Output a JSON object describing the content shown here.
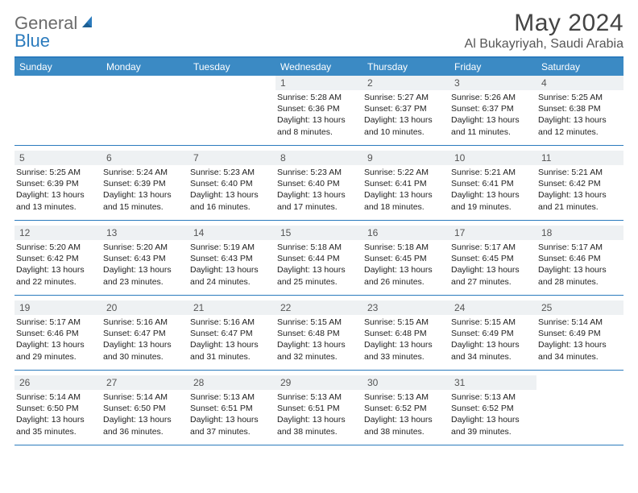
{
  "brand": {
    "part1": "General",
    "part2": "Blue"
  },
  "title": "May 2024",
  "location": "Al Bukayriyah, Saudi Arabia",
  "colors": {
    "header_bar": "#3b8ac4",
    "border": "#2b7bbd",
    "daynum_bg": "#eef1f3",
    "text": "#222222",
    "muted": "#555555",
    "logo_gray": "#6b6b6b",
    "logo_blue": "#2b7bbd"
  },
  "dow": [
    "Sunday",
    "Monday",
    "Tuesday",
    "Wednesday",
    "Thursday",
    "Friday",
    "Saturday"
  ],
  "weeks": [
    [
      {
        "empty": true
      },
      {
        "empty": true
      },
      {
        "empty": true
      },
      {
        "day": "1",
        "sunrise": "Sunrise: 5:28 AM",
        "sunset": "Sunset: 6:36 PM",
        "dl1": "Daylight: 13 hours",
        "dl2": "and 8 minutes."
      },
      {
        "day": "2",
        "sunrise": "Sunrise: 5:27 AM",
        "sunset": "Sunset: 6:37 PM",
        "dl1": "Daylight: 13 hours",
        "dl2": "and 10 minutes."
      },
      {
        "day": "3",
        "sunrise": "Sunrise: 5:26 AM",
        "sunset": "Sunset: 6:37 PM",
        "dl1": "Daylight: 13 hours",
        "dl2": "and 11 minutes."
      },
      {
        "day": "4",
        "sunrise": "Sunrise: 5:25 AM",
        "sunset": "Sunset: 6:38 PM",
        "dl1": "Daylight: 13 hours",
        "dl2": "and 12 minutes."
      }
    ],
    [
      {
        "day": "5",
        "sunrise": "Sunrise: 5:25 AM",
        "sunset": "Sunset: 6:39 PM",
        "dl1": "Daylight: 13 hours",
        "dl2": "and 13 minutes."
      },
      {
        "day": "6",
        "sunrise": "Sunrise: 5:24 AM",
        "sunset": "Sunset: 6:39 PM",
        "dl1": "Daylight: 13 hours",
        "dl2": "and 15 minutes."
      },
      {
        "day": "7",
        "sunrise": "Sunrise: 5:23 AM",
        "sunset": "Sunset: 6:40 PM",
        "dl1": "Daylight: 13 hours",
        "dl2": "and 16 minutes."
      },
      {
        "day": "8",
        "sunrise": "Sunrise: 5:23 AM",
        "sunset": "Sunset: 6:40 PM",
        "dl1": "Daylight: 13 hours",
        "dl2": "and 17 minutes."
      },
      {
        "day": "9",
        "sunrise": "Sunrise: 5:22 AM",
        "sunset": "Sunset: 6:41 PM",
        "dl1": "Daylight: 13 hours",
        "dl2": "and 18 minutes."
      },
      {
        "day": "10",
        "sunrise": "Sunrise: 5:21 AM",
        "sunset": "Sunset: 6:41 PM",
        "dl1": "Daylight: 13 hours",
        "dl2": "and 19 minutes."
      },
      {
        "day": "11",
        "sunrise": "Sunrise: 5:21 AM",
        "sunset": "Sunset: 6:42 PM",
        "dl1": "Daylight: 13 hours",
        "dl2": "and 21 minutes."
      }
    ],
    [
      {
        "day": "12",
        "sunrise": "Sunrise: 5:20 AM",
        "sunset": "Sunset: 6:42 PM",
        "dl1": "Daylight: 13 hours",
        "dl2": "and 22 minutes."
      },
      {
        "day": "13",
        "sunrise": "Sunrise: 5:20 AM",
        "sunset": "Sunset: 6:43 PM",
        "dl1": "Daylight: 13 hours",
        "dl2": "and 23 minutes."
      },
      {
        "day": "14",
        "sunrise": "Sunrise: 5:19 AM",
        "sunset": "Sunset: 6:43 PM",
        "dl1": "Daylight: 13 hours",
        "dl2": "and 24 minutes."
      },
      {
        "day": "15",
        "sunrise": "Sunrise: 5:18 AM",
        "sunset": "Sunset: 6:44 PM",
        "dl1": "Daylight: 13 hours",
        "dl2": "and 25 minutes."
      },
      {
        "day": "16",
        "sunrise": "Sunrise: 5:18 AM",
        "sunset": "Sunset: 6:45 PM",
        "dl1": "Daylight: 13 hours",
        "dl2": "and 26 minutes."
      },
      {
        "day": "17",
        "sunrise": "Sunrise: 5:17 AM",
        "sunset": "Sunset: 6:45 PM",
        "dl1": "Daylight: 13 hours",
        "dl2": "and 27 minutes."
      },
      {
        "day": "18",
        "sunrise": "Sunrise: 5:17 AM",
        "sunset": "Sunset: 6:46 PM",
        "dl1": "Daylight: 13 hours",
        "dl2": "and 28 minutes."
      }
    ],
    [
      {
        "day": "19",
        "sunrise": "Sunrise: 5:17 AM",
        "sunset": "Sunset: 6:46 PM",
        "dl1": "Daylight: 13 hours",
        "dl2": "and 29 minutes."
      },
      {
        "day": "20",
        "sunrise": "Sunrise: 5:16 AM",
        "sunset": "Sunset: 6:47 PM",
        "dl1": "Daylight: 13 hours",
        "dl2": "and 30 minutes."
      },
      {
        "day": "21",
        "sunrise": "Sunrise: 5:16 AM",
        "sunset": "Sunset: 6:47 PM",
        "dl1": "Daylight: 13 hours",
        "dl2": "and 31 minutes."
      },
      {
        "day": "22",
        "sunrise": "Sunrise: 5:15 AM",
        "sunset": "Sunset: 6:48 PM",
        "dl1": "Daylight: 13 hours",
        "dl2": "and 32 minutes."
      },
      {
        "day": "23",
        "sunrise": "Sunrise: 5:15 AM",
        "sunset": "Sunset: 6:48 PM",
        "dl1": "Daylight: 13 hours",
        "dl2": "and 33 minutes."
      },
      {
        "day": "24",
        "sunrise": "Sunrise: 5:15 AM",
        "sunset": "Sunset: 6:49 PM",
        "dl1": "Daylight: 13 hours",
        "dl2": "and 34 minutes."
      },
      {
        "day": "25",
        "sunrise": "Sunrise: 5:14 AM",
        "sunset": "Sunset: 6:49 PM",
        "dl1": "Daylight: 13 hours",
        "dl2": "and 34 minutes."
      }
    ],
    [
      {
        "day": "26",
        "sunrise": "Sunrise: 5:14 AM",
        "sunset": "Sunset: 6:50 PM",
        "dl1": "Daylight: 13 hours",
        "dl2": "and 35 minutes."
      },
      {
        "day": "27",
        "sunrise": "Sunrise: 5:14 AM",
        "sunset": "Sunset: 6:50 PM",
        "dl1": "Daylight: 13 hours",
        "dl2": "and 36 minutes."
      },
      {
        "day": "28",
        "sunrise": "Sunrise: 5:13 AM",
        "sunset": "Sunset: 6:51 PM",
        "dl1": "Daylight: 13 hours",
        "dl2": "and 37 minutes."
      },
      {
        "day": "29",
        "sunrise": "Sunrise: 5:13 AM",
        "sunset": "Sunset: 6:51 PM",
        "dl1": "Daylight: 13 hours",
        "dl2": "and 38 minutes."
      },
      {
        "day": "30",
        "sunrise": "Sunrise: 5:13 AM",
        "sunset": "Sunset: 6:52 PM",
        "dl1": "Daylight: 13 hours",
        "dl2": "and 38 minutes."
      },
      {
        "day": "31",
        "sunrise": "Sunrise: 5:13 AM",
        "sunset": "Sunset: 6:52 PM",
        "dl1": "Daylight: 13 hours",
        "dl2": "and 39 minutes."
      },
      {
        "empty": true
      }
    ]
  ]
}
